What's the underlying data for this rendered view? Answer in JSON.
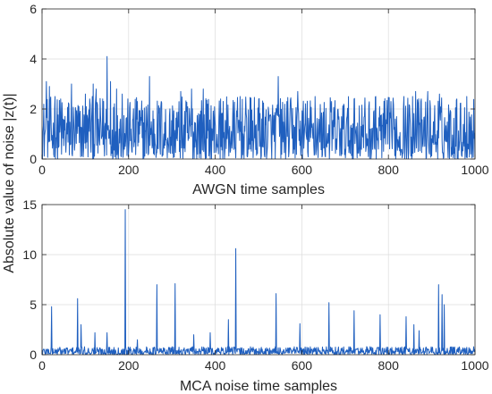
{
  "shared_ylabel": "Absolute value of noise |z(t)|",
  "colors": {
    "series": "#1f5fbf",
    "axis": "#262626",
    "grid": "#dcdcdc"
  },
  "chart_data": [
    {
      "type": "line",
      "title": "",
      "xlabel": "AWGN time samples",
      "ylabel": "",
      "xlim": [
        0,
        1000
      ],
      "ylim": [
        0,
        6
      ],
      "xticks": [
        0,
        200,
        400,
        600,
        800,
        1000
      ],
      "yticks": [
        0,
        2,
        4,
        6
      ],
      "grid": true,
      "series": [
        {
          "sample_count": 1000,
          "typical_range": [
            0,
            2.5
          ],
          "points": [
            [
              10,
              3.1
            ],
            [
              17,
              2.9
            ],
            [
              30,
              2.5
            ],
            [
              43,
              2.4
            ],
            [
              62,
              2.2
            ],
            [
              68,
              3.0
            ],
            [
              85,
              2.1
            ],
            [
              100,
              2.6
            ],
            [
              110,
              2.4
            ],
            [
              118,
              3.0
            ],
            [
              125,
              2.8
            ],
            [
              140,
              2.4
            ],
            [
              150,
              4.1
            ],
            [
              158,
              3.1
            ],
            [
              172,
              2.8
            ],
            [
              185,
              2.6
            ],
            [
              198,
              2.4
            ],
            [
              220,
              2.3
            ],
            [
              248,
              3.3
            ],
            [
              275,
              2.3
            ],
            [
              320,
              2.7
            ],
            [
              345,
              2.8
            ],
            [
              372,
              2.8
            ],
            [
              412,
              2.4
            ],
            [
              457,
              2.5
            ],
            [
              500,
              2.4
            ],
            [
              545,
              3.3
            ],
            [
              590,
              2.7
            ],
            [
              630,
              2.5
            ],
            [
              668,
              2.3
            ],
            [
              720,
              2.4
            ],
            [
              770,
              2.5
            ],
            [
              805,
              2.3
            ],
            [
              835,
              2.5
            ],
            [
              855,
              2.5
            ],
            [
              862,
              2.7
            ],
            [
              890,
              2.7
            ],
            [
              917,
              2.6
            ],
            [
              957,
              2.4
            ],
            [
              980,
              2.5
            ]
          ]
        }
      ]
    },
    {
      "type": "line",
      "title": "",
      "xlabel": "MCA noise time samples",
      "ylabel": "",
      "xlim": [
        0,
        1000
      ],
      "ylim": [
        0,
        15
      ],
      "xticks": [
        0,
        200,
        400,
        600,
        800,
        1000
      ],
      "yticks": [
        0,
        5,
        10,
        15
      ],
      "grid": true,
      "series": [
        {
          "sample_count": 1000,
          "typical_range": [
            0,
            0.8
          ],
          "points": [
            [
              22,
              4.8
            ],
            [
              82,
              5.6
            ],
            [
              90,
              3.0
            ],
            [
              122,
              2.2
            ],
            [
              150,
              2.2
            ],
            [
              192,
              14.5
            ],
            [
              220,
              1.5
            ],
            [
              265,
              7.0
            ],
            [
              307,
              7.1
            ],
            [
              350,
              2.0
            ],
            [
              388,
              2.2
            ],
            [
              430,
              3.5
            ],
            [
              447,
              10.6
            ],
            [
              540,
              6.1
            ],
            [
              595,
              3.1
            ],
            [
              662,
              5.2
            ],
            [
              720,
              4.4
            ],
            [
              780,
              4.0
            ],
            [
              840,
              3.8
            ],
            [
              858,
              3.0
            ],
            [
              870,
              2.4
            ],
            [
              915,
              7.0
            ],
            [
              923,
              6.0
            ],
            [
              928,
              5.0
            ]
          ]
        }
      ]
    }
  ]
}
